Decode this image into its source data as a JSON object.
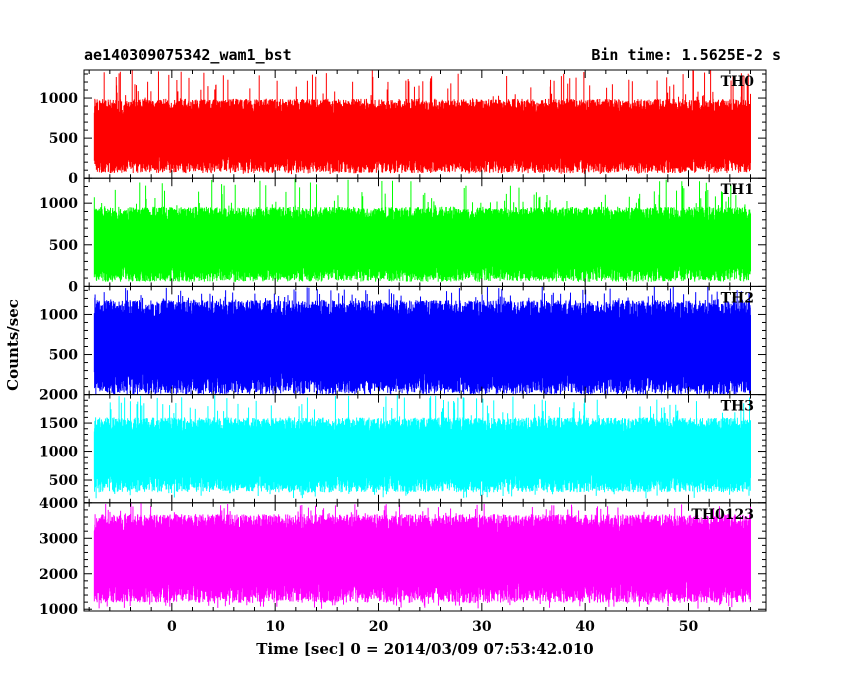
{
  "header": {
    "title": "ae140309075342_wam1_bst",
    "bin_time": "Bin time: 1.5625E-2 s"
  },
  "chart_data": {
    "type": "line",
    "xlabel": "Time [sec] 0 = 2014/03/09 07:53:42.010",
    "ylabel": "Counts/sec",
    "xlim": [
      -8.5,
      57.5
    ],
    "x_range": [
      -7.5,
      56
    ],
    "x_ticks": [
      0,
      10,
      20,
      30,
      40,
      50
    ],
    "x_tick_labels": [
      "0",
      "10",
      "20",
      "30",
      "40",
      "50"
    ],
    "grid": false,
    "panels": [
      {
        "name": "TH0",
        "color": "#ff0000",
        "ylim": [
          0,
          1350
        ],
        "y_ticks": [
          0,
          500,
          1000
        ],
        "y_tick_labels": [
          "0",
          "500",
          "1000"
        ],
        "typical_low": 180,
        "typical_high": 850,
        "min": 50,
        "max": 1350
      },
      {
        "name": "TH1",
        "color": "#00ff00",
        "ylim": [
          0,
          1300
        ],
        "y_ticks": [
          0,
          500,
          1000
        ],
        "y_tick_labels": [
          "0",
          "500",
          "1000"
        ],
        "typical_low": 170,
        "typical_high": 820,
        "min": 60,
        "max": 1300
      },
      {
        "name": "TH2",
        "color": "#0000ff",
        "ylim": [
          0,
          1350
        ],
        "y_ticks": [
          500,
          1000
        ],
        "y_tick_labels": [
          "500",
          "1000"
        ],
        "typical_low": 150,
        "typical_high": 1000,
        "min": 0,
        "max": 1350
      },
      {
        "name": "TH3",
        "color": "#00ffff",
        "ylim": [
          100,
          2000
        ],
        "y_ticks": [
          500,
          1000,
          1500,
          2000
        ],
        "y_tick_labels": [
          "500",
          "1000",
          "1500",
          "2000"
        ],
        "typical_low": 450,
        "typical_high": 1400,
        "min": 180,
        "max": 2000
      },
      {
        "name": "TH0123",
        "color": "#ff00ff",
        "ylim": [
          950,
          4000
        ],
        "y_ticks": [
          1000,
          2000,
          3000,
          4000
        ],
        "y_tick_labels": [
          "1000",
          "2000",
          "3000",
          "4000"
        ],
        "typical_low": 1500,
        "typical_high": 3300,
        "min": 1000,
        "max": 4000
      }
    ]
  }
}
